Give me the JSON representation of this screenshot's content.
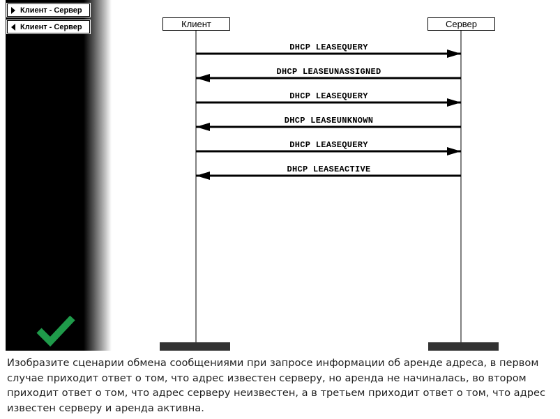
{
  "sidebar": {
    "items": [
      {
        "label": "Клиент - Сервер",
        "arrow": "right"
      },
      {
        "label": "Клиент - Сервер",
        "arrow": "left"
      }
    ],
    "check_icon": "checkmark-icon",
    "check_color": "#1f9a4a"
  },
  "diagram": {
    "client_label": "Клиент",
    "server_label": "Сервер",
    "messages": [
      {
        "label": "DHCP LEASEQUERY",
        "direction": "to-server"
      },
      {
        "label": "DHCP LEASEUNASSIGNED",
        "direction": "to-client"
      },
      {
        "label": "DHCP LEASEQUERY",
        "direction": "to-server"
      },
      {
        "label": "DHCP LEASEUNKNOWN",
        "direction": "to-client"
      },
      {
        "label": "DHCP LEASEQUERY",
        "direction": "to-server"
      },
      {
        "label": "DHCP LEASEACTIVE",
        "direction": "to-client"
      }
    ]
  },
  "task": {
    "description": "Изобразите сценарии обмена сообщениями при запросе информации об аренде адреса, в первом случае приходит ответ о том, что адрес известен серверу, но аренда не начиналась, во втором приходит ответ о том, что адрес серверу неизвестен, а в третьем приходит ответ о том, что адрес известен серверу и аренда активна."
  }
}
